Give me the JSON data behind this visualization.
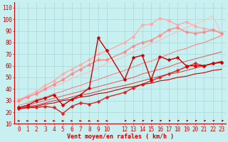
{
  "background_color": "#c8f0f0",
  "grid_color": "#a8d8d8",
  "xlim": [
    -0.5,
    23.5
  ],
  "ylim": [
    10,
    115
  ],
  "yticks": [
    10,
    20,
    30,
    40,
    50,
    60,
    70,
    80,
    90,
    100,
    110
  ],
  "xticks": [
    0,
    1,
    2,
    3,
    4,
    5,
    6,
    7,
    8,
    9,
    10,
    12,
    13,
    14,
    15,
    16,
    17,
    18,
    19,
    20,
    21,
    22,
    23
  ],
  "xlabel": "Vent moyen/en rafales ( km/h )",
  "x": [
    0,
    1,
    2,
    3,
    4,
    5,
    6,
    7,
    8,
    9,
    10,
    12,
    13,
    14,
    15,
    16,
    17,
    18,
    19,
    20,
    21,
    22,
    23
  ],
  "lines": [
    {
      "y": [
        24,
        26,
        30,
        32,
        35,
        26,
        31,
        35,
        41,
        84,
        73,
        48,
        67,
        69,
        48,
        68,
        65,
        67,
        60,
        60,
        60,
        62,
        63
      ],
      "color": "#cc0000",
      "marker": "D",
      "markersize": 2.5,
      "lw": 1.0,
      "zorder": 5
    },
    {
      "y": [
        23,
        24,
        24,
        25,
        24,
        19,
        25,
        28,
        27,
        29,
        33,
        37,
        41,
        44,
        47,
        50,
        53,
        56,
        59,
        62,
        60,
        62,
        63
      ],
      "color": "#dd2222",
      "marker": "D",
      "markersize": 2.5,
      "lw": 1.0,
      "zorder": 4
    },
    {
      "y": [
        31,
        34,
        38,
        43,
        47,
        53,
        57,
        61,
        65,
        70,
        73,
        80,
        85,
        95,
        96,
        101,
        99,
        95,
        98,
        94,
        92,
        91,
        88
      ],
      "color": "#ffaaaa",
      "marker": "D",
      "markersize": 2.5,
      "lw": 1.0,
      "zorder": 2
    },
    {
      "y": [
        30,
        33,
        36,
        40,
        44,
        48,
        53,
        57,
        61,
        65,
        65,
        72,
        77,
        80,
        82,
        86,
        91,
        93,
        89,
        88,
        89,
        91,
        88
      ],
      "color": "#ff8888",
      "marker": "D",
      "markersize": 2.5,
      "lw": 1.0,
      "zorder": 3
    },
    {
      "y": [
        23,
        24,
        25,
        27,
        28,
        30,
        31,
        33,
        34,
        36,
        37,
        41,
        42,
        44,
        45,
        47,
        48,
        50,
        51,
        53,
        54,
        56,
        57
      ],
      "color": "#cc0000",
      "marker": null,
      "lw": 0.8,
      "zorder": 4
    },
    {
      "y": [
        23,
        25,
        26,
        28,
        30,
        31,
        33,
        35,
        36,
        38,
        40,
        43,
        45,
        47,
        49,
        51,
        53,
        54,
        56,
        58,
        60,
        62,
        64
      ],
      "color": "#dd3333",
      "marker": null,
      "lw": 0.7,
      "zorder": 3
    },
    {
      "y": [
        24,
        26,
        28,
        30,
        32,
        34,
        36,
        38,
        40,
        42,
        44,
        48,
        50,
        53,
        55,
        57,
        59,
        62,
        64,
        66,
        68,
        70,
        72
      ],
      "color": "#ee5555",
      "marker": null,
      "lw": 0.7,
      "zorder": 3
    },
    {
      "y": [
        26,
        28,
        31,
        33,
        36,
        38,
        41,
        43,
        46,
        48,
        51,
        56,
        59,
        62,
        64,
        67,
        70,
        73,
        75,
        78,
        80,
        83,
        86
      ],
      "color": "#ff7777",
      "marker": null,
      "lw": 0.7,
      "zorder": 2
    },
    {
      "y": [
        30,
        33,
        36,
        39,
        42,
        45,
        49,
        52,
        55,
        58,
        62,
        68,
        72,
        75,
        79,
        82,
        86,
        89,
        93,
        96,
        99,
        103,
        87
      ],
      "color": "#ffbbbb",
      "marker": null,
      "lw": 0.7,
      "zorder": 2
    }
  ],
  "arrow_color": "#cc0000",
  "axis_fontsize": 6,
  "tick_fontsize": 5.5
}
